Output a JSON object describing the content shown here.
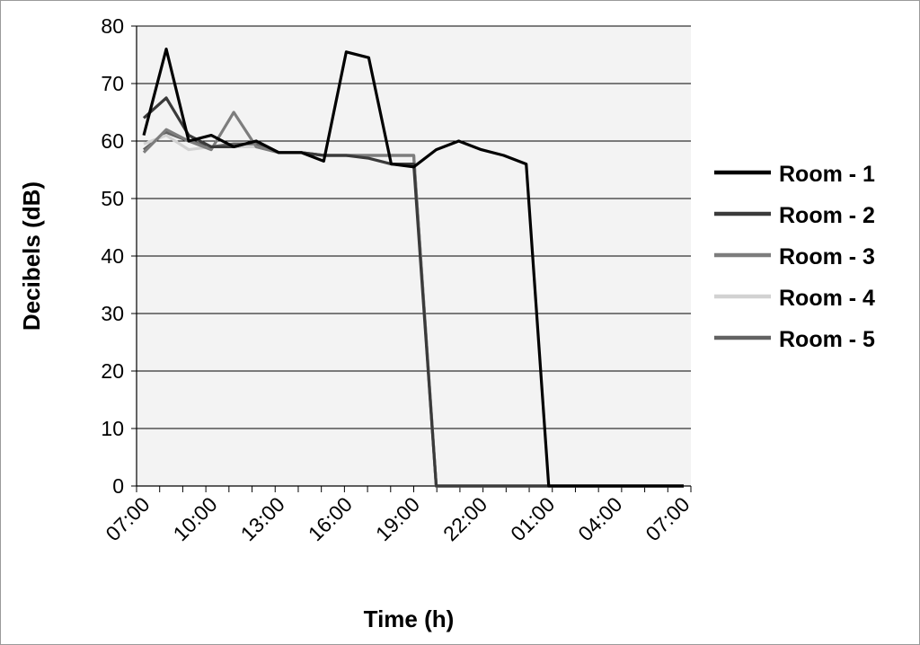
{
  "chart_data": {
    "type": "line",
    "title": "",
    "xlabel": "Time (h)",
    "ylabel": "Decibels (dB)",
    "ylim": [
      0,
      80
    ],
    "y_ticks": [
      "0",
      "10",
      "20",
      "30",
      "40",
      "50",
      "60",
      "70",
      "80"
    ],
    "x_tick_labels": [
      "07:00",
      "10:00",
      "13:00",
      "16:00",
      "19:00",
      "22:00",
      "01:00",
      "04:00",
      "07:00"
    ],
    "x_points": [
      "07:00",
      "08:00",
      "09:00",
      "10:00",
      "11:00",
      "12:00",
      "13:00",
      "14:00",
      "15:00",
      "16:00",
      "17:00",
      "18:00",
      "19:00",
      "20:00",
      "21:00",
      "22:00",
      "23:00",
      "00:00",
      "01:00",
      "02:00",
      "03:00",
      "04:00",
      "05:00",
      "06:00",
      "07:00"
    ],
    "grid": true,
    "legend_position": "right",
    "series": [
      {
        "name": "Room - 1",
        "color": "#000000",
        "values": [
          61,
          76,
          60,
          61,
          59,
          60,
          58,
          58,
          56.5,
          75.5,
          74.5,
          56,
          55.5,
          58.5,
          60,
          58.5,
          57.5,
          56,
          0,
          0,
          0,
          0,
          0,
          0,
          0
        ]
      },
      {
        "name": "Room - 2",
        "color": "#3a3a3a",
        "values": [
          64,
          67.5,
          61,
          59,
          59,
          60,
          58,
          58,
          57.5,
          57.5,
          57,
          56,
          56,
          0,
          0,
          0,
          0,
          0,
          0,
          0,
          0,
          0,
          0,
          0,
          0
        ]
      },
      {
        "name": "Room - 3",
        "color": "#7d7d7d",
        "values": [
          58,
          62,
          60,
          58.5,
          65,
          59,
          58,
          58,
          57.5,
          57.5,
          57.5,
          57.5,
          57.5,
          0,
          0,
          0,
          0,
          0,
          0,
          0,
          0,
          0,
          0,
          0,
          0
        ]
      },
      {
        "name": "Room - 4",
        "color": "#d2d2d2",
        "values": [
          59.5,
          61,
          58.5,
          59,
          59,
          59,
          58,
          58,
          57.5,
          57.5,
          57.5,
          57.5,
          57.5,
          0,
          0,
          0,
          0,
          0,
          0,
          0,
          0,
          0,
          0,
          0,
          0
        ]
      },
      {
        "name": "Room - 5",
        "color": "#626262",
        "values": [
          58.5,
          61.5,
          60,
          59,
          59.5,
          59.5,
          58,
          58,
          57.5,
          57.5,
          57.5,
          57.5,
          57.5,
          0,
          0,
          0,
          0,
          0,
          0,
          0,
          0,
          0,
          0,
          0,
          0
        ]
      }
    ]
  }
}
